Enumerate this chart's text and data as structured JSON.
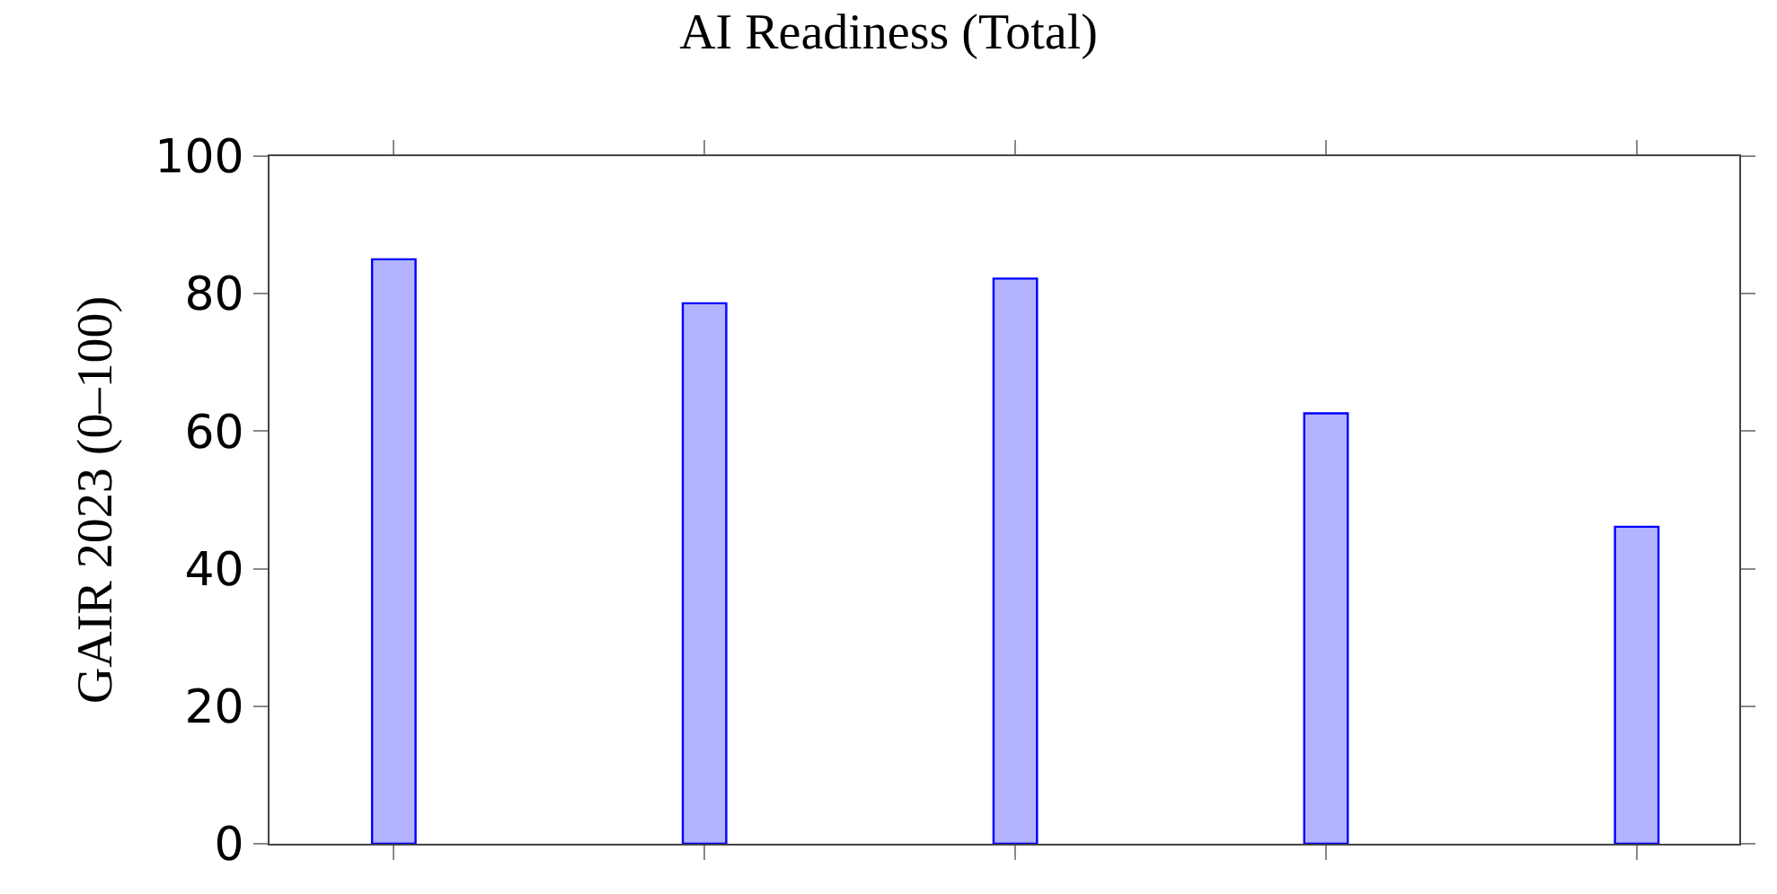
{
  "chart_data": {
    "type": "bar",
    "title": "AI Readiness (Total)",
    "ylabel": "GAIR 2023 (0–100)",
    "categories": [
      null,
      null,
      null,
      null,
      null
    ],
    "series": [
      {
        "color": "#b3b3ff",
        "values": [
          85.0,
          78.6,
          82.2,
          62.6,
          46.1
        ]
      }
    ],
    "ylim": [
      0,
      100
    ],
    "yticks": [
      0,
      20,
      40,
      60,
      80,
      100
    ],
    "legend": false
  }
}
